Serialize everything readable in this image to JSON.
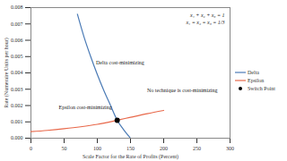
{
  "chart_data": {
    "type": "line",
    "x_label": "Scale Factor for the Rate of Profits (Percent)",
    "y_label": "Rate (Numeraire Units per hour)",
    "xlim": [
      0,
      300
    ],
    "xticks": [
      0,
      50,
      100,
      150,
      200,
      250,
      300
    ],
    "ylim": [
      0,
      0.008
    ],
    "yticks": [
      {
        "value": 0,
        "label": "0.000"
      },
      {
        "value": 0.001,
        "label": "0.001"
      },
      {
        "value": 0.002,
        "label": "0.002"
      },
      {
        "value": 0.003,
        "label": "0.003"
      },
      {
        "value": 0.004,
        "label": "0.004"
      },
      {
        "value": 0.005,
        "label": "0.005"
      },
      {
        "value": 0.006,
        "label": "0.006"
      },
      {
        "value": 0.007,
        "label": "0.007"
      },
      {
        "value": 0.008,
        "label": "0.008"
      }
    ],
    "legend": "right",
    "series": [
      {
        "name": "Delta",
        "color": "#4a7ab5",
        "type": "line",
        "x": [
          70,
          80,
          90,
          100,
          110,
          120,
          130,
          140,
          150
        ],
        "values": [
          0.0076,
          0.0062,
          0.005,
          0.0039,
          0.0029,
          0.002,
          0.0011,
          0.0005,
          0.0
        ]
      },
      {
        "name": "Epsilon",
        "color": "#e8684a",
        "type": "line",
        "x": [
          0,
          25,
          50,
          75,
          100,
          130,
          150,
          175,
          200
        ],
        "values": [
          0.0004,
          0.00048,
          0.00058,
          0.0007,
          0.00085,
          0.0011,
          0.00128,
          0.0015,
          0.0017
        ]
      },
      {
        "name": "Switch Point",
        "color": "#000000",
        "type": "scatter",
        "marker": "circle",
        "x": [
          130
        ],
        "values": [
          0.0011
        ]
      }
    ],
    "annotations": [
      {
        "text": "Delta cost-minimizing",
        "x": 98,
        "y": 0.0046
      },
      {
        "text": "Epsilon cost-minimizing",
        "x": 42,
        "y": 0.0019
      },
      {
        "text": "No technique is cost-minimizing",
        "x": 175,
        "y": 0.0029
      }
    ],
    "equations": [
      "x₁ + x₂ + x₃ = 1",
      "x₁ = x₂ = x₃ = 1/3"
    ]
  }
}
